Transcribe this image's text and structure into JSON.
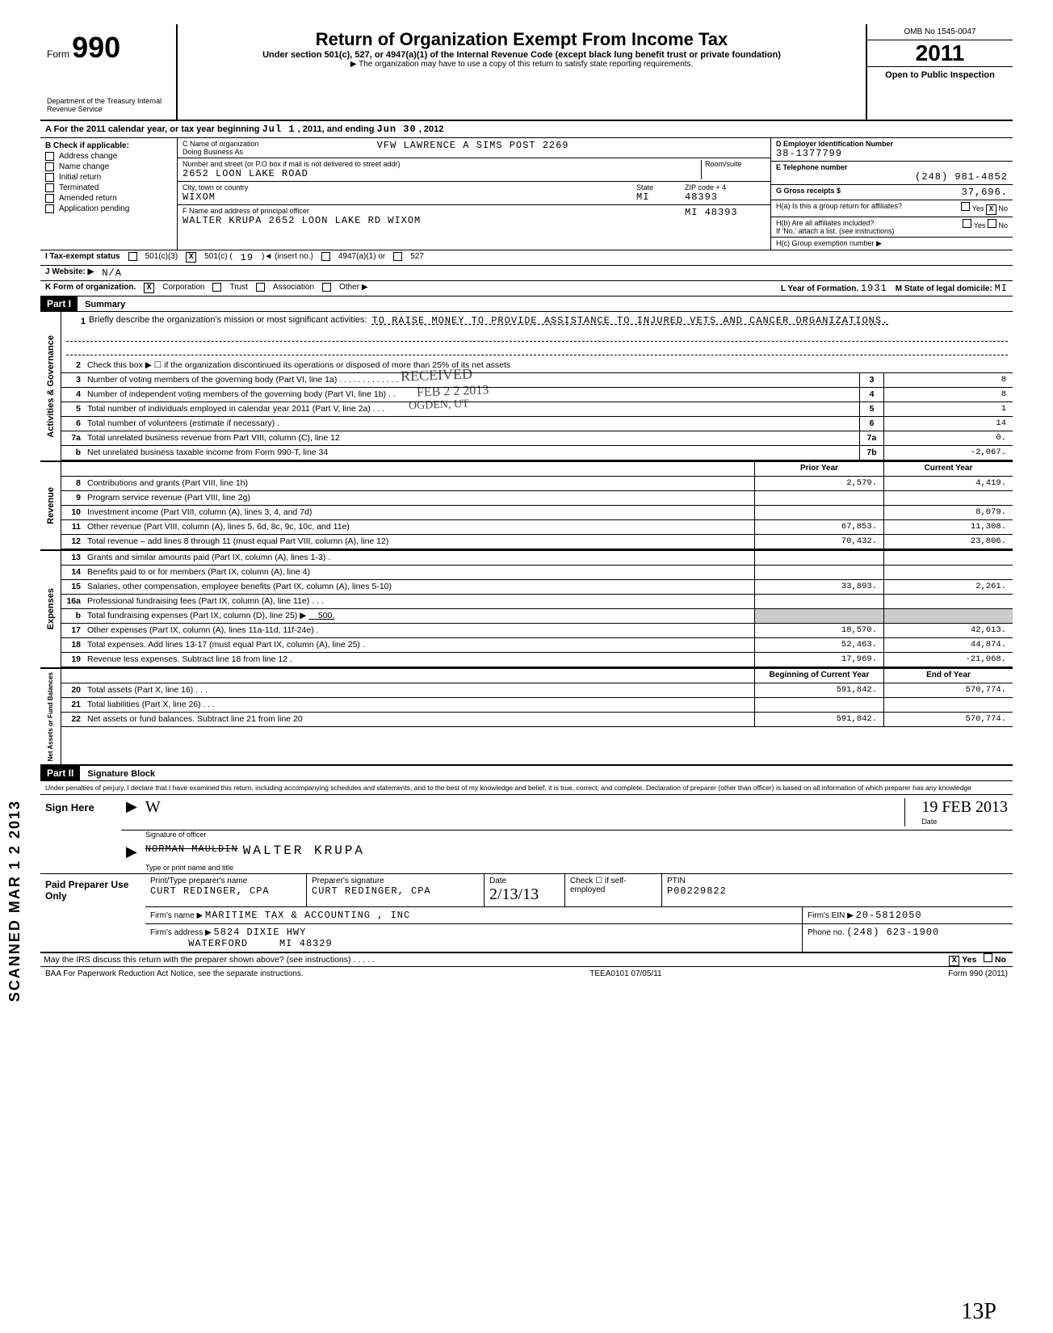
{
  "header": {
    "form_word": "Form",
    "form_number": "990",
    "dept": "Department of the Treasury\nInternal Revenue Service",
    "title": "Return of Organization Exempt From Income Tax",
    "subtitle": "Under section 501(c), 527, or 4947(a)(1) of the Internal Revenue Code (except black lung benefit trust or private foundation)",
    "notice": "▶ The organization may have to use a copy of this return to satisfy state reporting requirements.",
    "omb": "OMB No 1545-0047",
    "year": "2011",
    "open": "Open to Public Inspection"
  },
  "rowA": {
    "label": "A   For the 2011 calendar year, or tax year beginning",
    "begin": "Jul 1",
    "mid": ", 2011, and ending",
    "end_month": "Jun 30",
    "end_year": ", 2012"
  },
  "colB": {
    "header": "B   Check if applicable:",
    "items": [
      "Address change",
      "Name change",
      "Initial return",
      "Terminated",
      "Amended return",
      "Application pending"
    ]
  },
  "orgC": {
    "name_label": "C Name of organization",
    "name": "VFW LAWRENCE A SIMS POST 2269",
    "dba_label": "Doing Business As",
    "addr_label": "Number and street (or P.O box if mail is not delivered to street addr)",
    "room_label": "Room/suite",
    "street": "2652 LOON LAKE ROAD",
    "city_label": "City, town or country",
    "state_label": "State",
    "zip_label": "ZIP code + 4",
    "city": "WIXOM",
    "state": "MI",
    "zip": "48393",
    "officer_label": "F Name and address of principal officer",
    "officer": "WALTER KRUPA 2652 LOON LAKE RD WIXOM",
    "officer_state": "MI 48393"
  },
  "rightDE": {
    "ein_label": "D  Employer Identification Number",
    "ein": "38-1377799",
    "tel_label": "E  Telephone number",
    "tel": "(248) 981-4852",
    "gross_label": "G  Gross receipts $",
    "gross": "37,696.",
    "ha_label": "H(a) Is this a group return for affiliates?",
    "ha_yes": "Yes",
    "ha_no": "No",
    "ha_checked": "X",
    "hb_label": "H(b) Are all affiliates included?",
    "hb_note": "If 'No,' attach a list. (see instructions)",
    "hc_label": "H(c) Group exemption number ▶"
  },
  "rowI": {
    "label": "I       Tax-exempt status",
    "c3": "501(c)(3)",
    "c": "501(c) (",
    "c_num": "19",
    "c_after": ")◄  (insert no.)",
    "a1": "4947(a)(1) or",
    "527": "527"
  },
  "rowJ": {
    "label": "J      Website: ▶",
    "val": "N/A"
  },
  "rowK": {
    "label": "K      Form of organization.",
    "corp": "Corporation",
    "trust": "Trust",
    "assoc": "Association",
    "other": "Other ▶",
    "year_label": "L Year of Formation.",
    "year": "1931",
    "state_label": "M State of legal domicile:",
    "state": "MI"
  },
  "part1": {
    "header": "Part I",
    "title": "Summary",
    "mission_label": "Briefly describe the organization's mission or most significant activities:",
    "mission": "TO RAISE MONEY TO PROVIDE ASSISTANCE TO INJURED VETS AND CANCER ORGANIZATIONS.",
    "line2": "Check this box ▶ ☐ if the organization discontinued its operations or disposed of more than 25% of its net assets",
    "governance_label": "Activities & Governance",
    "revenue_label": "Revenue",
    "expenses_label": "Expenses",
    "netassets_label": "Net Assets or Fund Balances",
    "prior_header": "Prior Year",
    "current_header": "Current Year",
    "boy_header": "Beginning of Current Year",
    "eoy_header": "End of Year",
    "lines_gov": [
      {
        "n": "3",
        "d": "Number of voting members of the governing body (Part VI, line 1a) . . .  . . . . . . . . . .",
        "box": "3",
        "v": "8"
      },
      {
        "n": "4",
        "d": "Number of independent voting members of the governing body (Part VI, line 1b) . .",
        "box": "4",
        "v": "8"
      },
      {
        "n": "5",
        "d": "Total number of individuals employed in calendar year 2011 (Part V, line 2a) . . .",
        "box": "5",
        "v": "1"
      },
      {
        "n": "6",
        "d": "Total number of volunteers (estimate if necessary) .",
        "box": "6",
        "v": "14"
      },
      {
        "n": "7a",
        "d": "Total unrelated business revenue from Part VIII, column (C), line 12",
        "box": "7a",
        "v": "0."
      },
      {
        "n": "b",
        "d": "Net unrelated business taxable income from Form 990-T, line 34",
        "box": "7b",
        "v": "-2,067."
      }
    ],
    "lines_rev": [
      {
        "n": "8",
        "d": "Contributions and grants (Part VIII, line 1h)",
        "p": "2,579.",
        "c": "4,419."
      },
      {
        "n": "9",
        "d": "Program service revenue (Part VIII, line 2g)",
        "p": "",
        "c": ""
      },
      {
        "n": "10",
        "d": "Investment income (Part VIII, column (A), lines 3, 4, and 7d)",
        "p": "",
        "c": "8,079."
      },
      {
        "n": "11",
        "d": "Other revenue (Part VIII, column (A), lines 5, 6d, 8c, 9c, 10c, and 11e)",
        "p": "67,853.",
        "c": "11,308."
      },
      {
        "n": "12",
        "d": "Total revenue – add lines 8 through 11 (must equal Part VIII, column (A), line 12)",
        "p": "70,432.",
        "c": "23,806."
      }
    ],
    "lines_exp": [
      {
        "n": "13",
        "d": "Grants and similar amounts paid (Part IX, column (A), lines 1-3) .",
        "p": "",
        "c": ""
      },
      {
        "n": "14",
        "d": "Benefits paid to or for members (Part IX, column (A), line 4)",
        "p": "",
        "c": ""
      },
      {
        "n": "15",
        "d": "Salaries, other compensation, employee benefits (Part IX, column (A), lines 5-10)",
        "p": "33,893.",
        "c": "2,261."
      },
      {
        "n": "16a",
        "d": "Professional fundraising fees (Part IX, column (A), line 11e) . . .",
        "p": "",
        "c": ""
      },
      {
        "n": "b",
        "d": "Total fundraising expenses (Part IX, column (D), line 25) ▶",
        "inline": "500.",
        "p": "",
        "c": "",
        "shaded": true
      },
      {
        "n": "17",
        "d": "Other expenses (Part IX, column (A), lines 11a-11d, 11f-24e) .",
        "p": "18,570.",
        "c": "42,613."
      },
      {
        "n": "18",
        "d": "Total expenses. Add lines 13-17 (must equal Part IX, column (A), line 25) .",
        "p": "52,463.",
        "c": "44,874."
      },
      {
        "n": "19",
        "d": "Revenue less expenses. Subtract line 18 from line 12 .",
        "p": "17,969.",
        "c": "-21,068."
      }
    ],
    "lines_net": [
      {
        "n": "20",
        "d": "Total assets (Part X, line 16)  . . .",
        "p": "591,842.",
        "c": "570,774."
      },
      {
        "n": "21",
        "d": "Total liabilities (Part X, line 26)  . . .",
        "p": "",
        "c": ""
      },
      {
        "n": "22",
        "d": "Net assets or fund balances. Subtract line 21 from line 20",
        "p": "591,842.",
        "c": "570,774."
      }
    ]
  },
  "stamp": {
    "received": "RECEIVED",
    "date": "FEB 2 2 2013",
    "ogden": "OGDEN, UT"
  },
  "part2": {
    "header": "Part II",
    "title": "Signature Block",
    "declaration": "Under penalties of perjury, I declare that I have examined this return, including accompanying schedules and statements, and to the best of my knowledge and belief, it is true, correct, and complete. Declaration of preparer (other than officer) is based on all information of which preparer has any knowledge",
    "sign_here": "Sign Here",
    "sig_label": "Signature of officer",
    "date_label": "Date",
    "sig_date": "19 FEB 2013",
    "name_label": "Type or print name and title",
    "name_struck": "NORMAN MAULDIN",
    "name_hand": "WALTER KRUPA"
  },
  "preparer": {
    "left": "Paid Preparer Use Only",
    "name_label": "Print/Type preparer's name",
    "name": "CURT REDINGER, CPA",
    "sig_label": "Preparer's signature",
    "sig": "CURT REDINGER, CPA",
    "date_label": "Date",
    "date": "2/13/13",
    "check_label": "Check ☐ if self-employed",
    "ptin_label": "PTIN",
    "ptin": "P00229822",
    "firm_name_label": "Firm's name    ▶",
    "firm_name": "MARITIME TAX & ACCOUNTING , INC",
    "firm_ein_label": "Firm's EIN  ▶",
    "firm_ein": "20-5812050",
    "firm_addr_label": "Firm's address   ▶",
    "firm_addr1": "5824 DIXIE HWY",
    "firm_addr2": "WATERFORD",
    "firm_state": "MI",
    "firm_zip": "48329",
    "phone_label": "Phone no.",
    "phone": "(248) 623-1900"
  },
  "footer": {
    "discuss": "May the IRS discuss this return with the preparer shown above? (see instructions) . . . . .",
    "discuss_yes": "Yes",
    "discuss_no": "No",
    "discuss_x": "X",
    "baa": "BAA  For Paperwork Reduction Act Notice, see the separate instructions.",
    "code": "TEEA0101    07/05/11",
    "form": "Form 990 (2011)"
  },
  "margin": {
    "scanned": "SCANNED MAR 1 2 2013",
    "handwrite": "13P"
  }
}
